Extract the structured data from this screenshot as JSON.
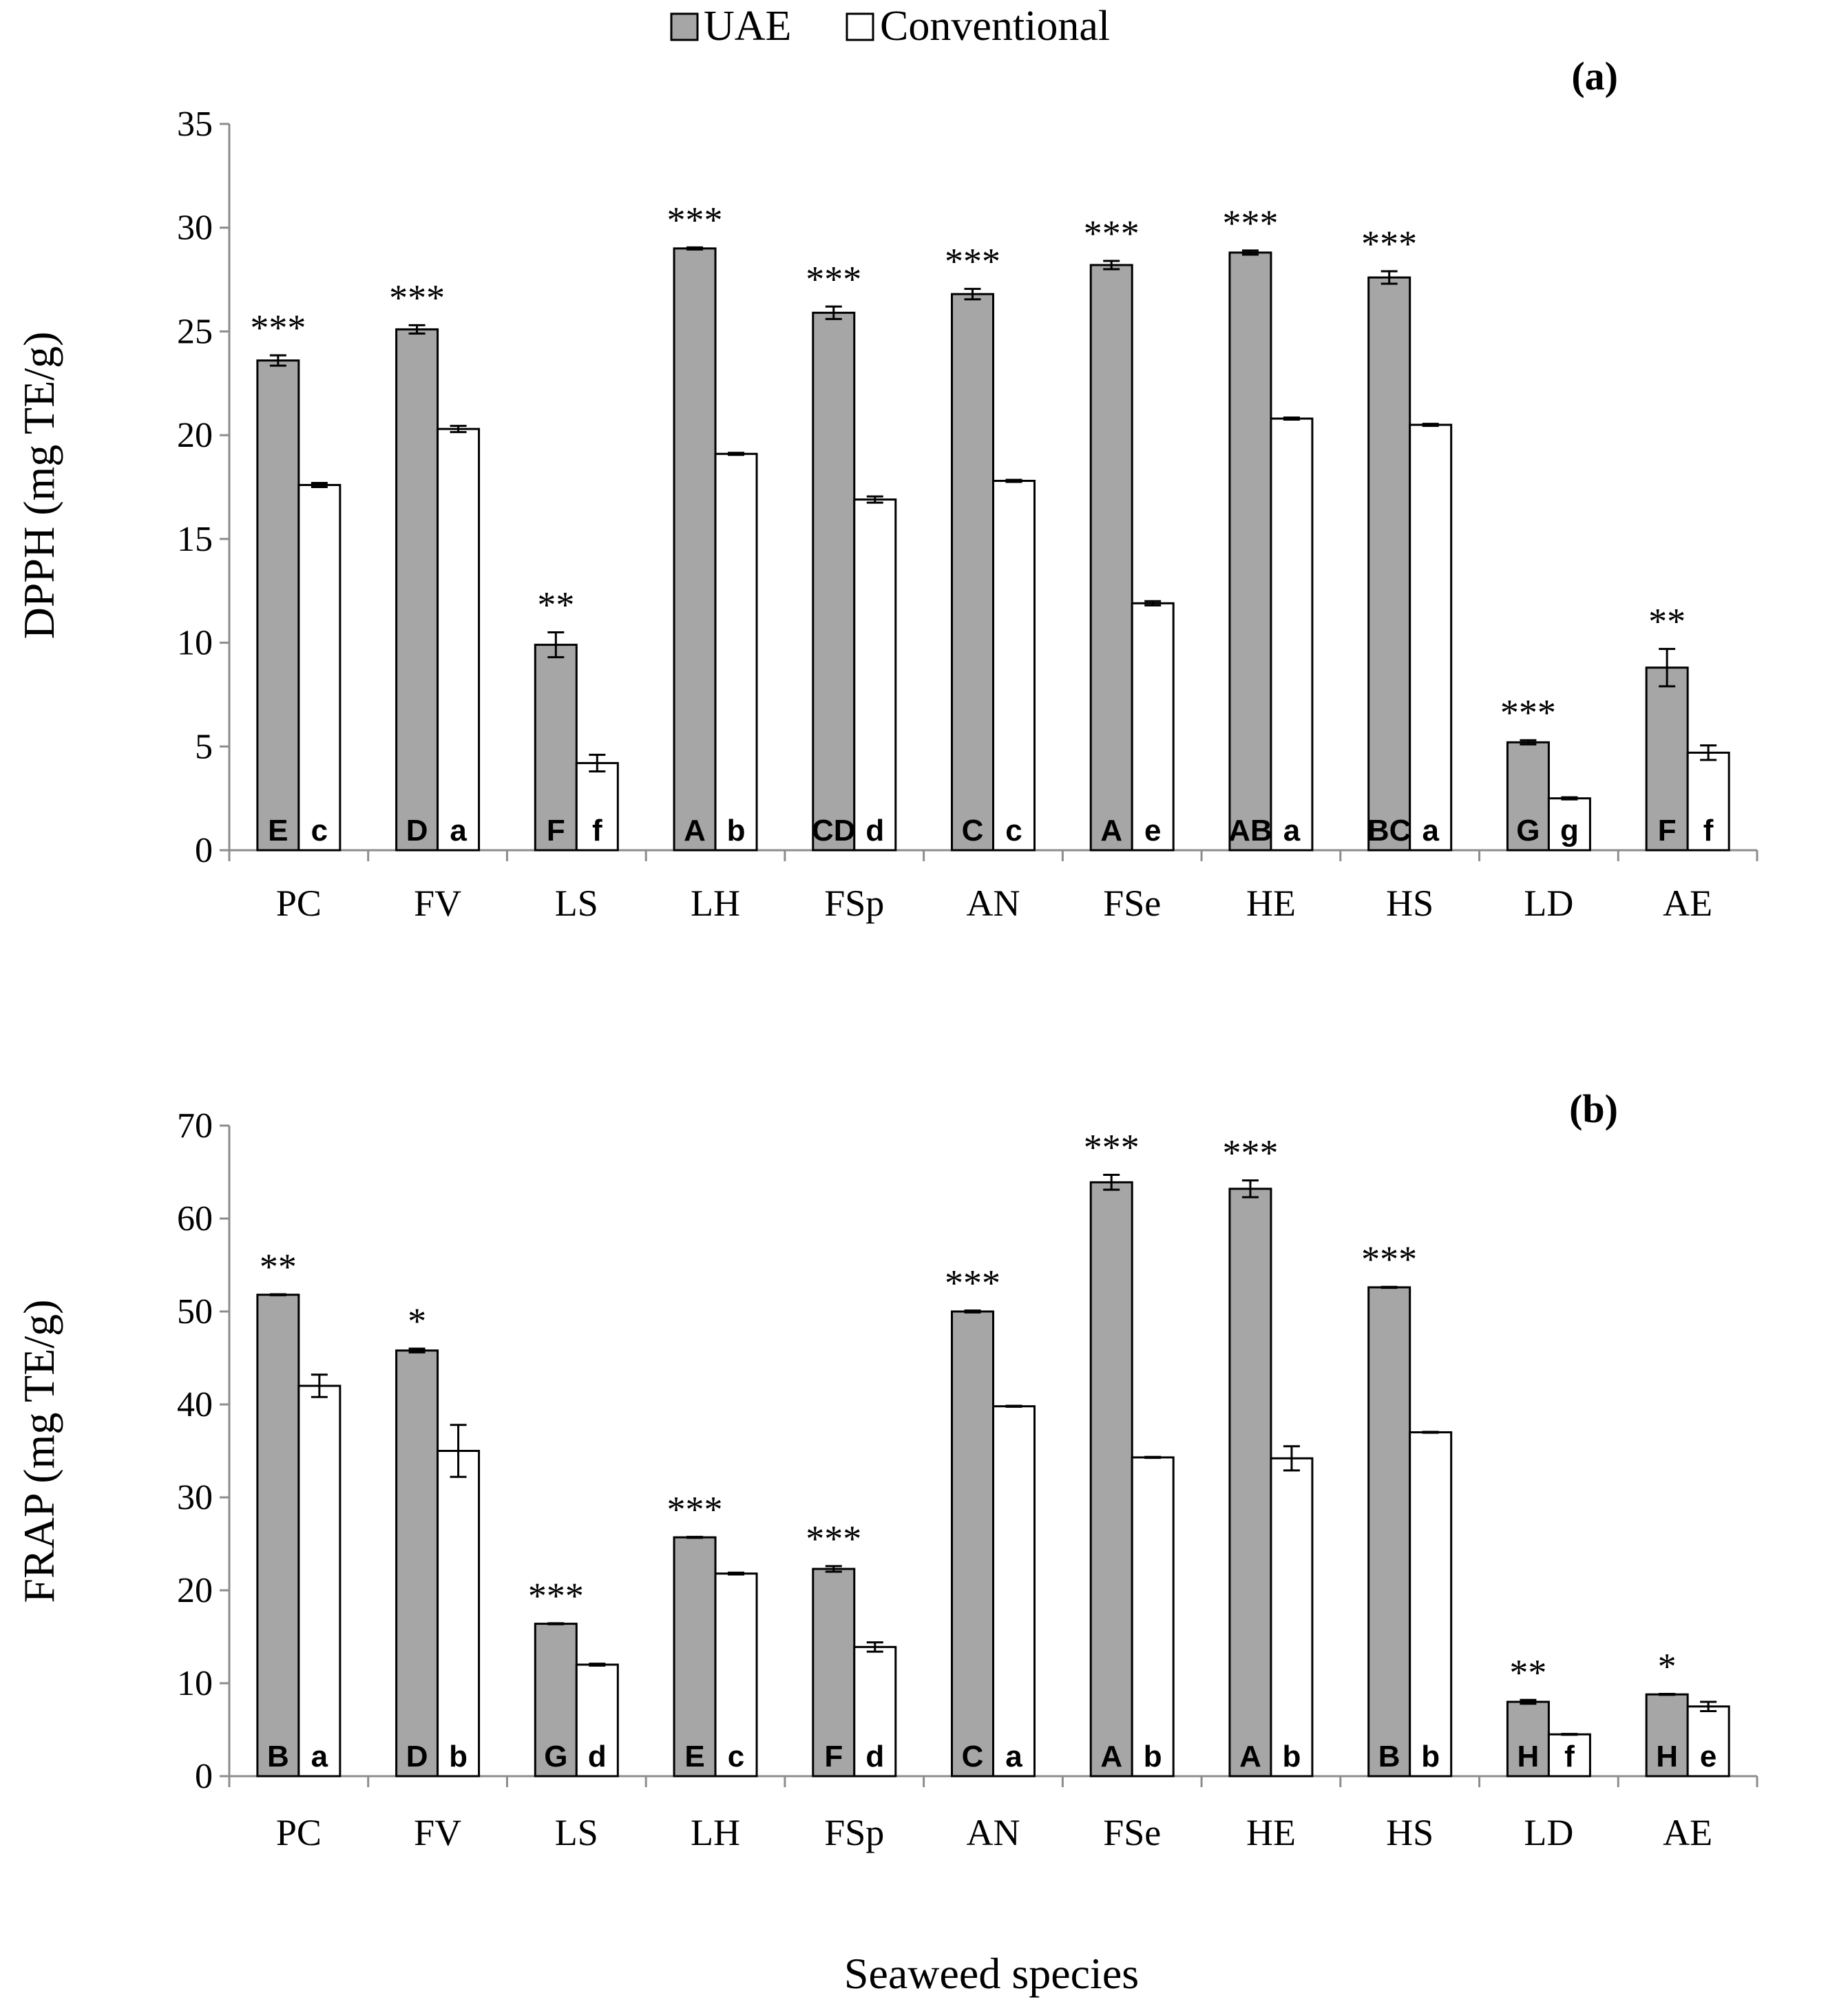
{
  "legend": {
    "uae_label": "UAE",
    "conv_label": "Conventional"
  },
  "colors": {
    "uae": "#a6a6a6",
    "conventional": "#ffffff",
    "axis": "#8c8c8c"
  },
  "xlabel": "Seaweed species",
  "chart_data": [
    {
      "type": "bar",
      "panel": "(a)",
      "ylabel": "DPPH (mg TE/g)",
      "xlabel": "Seaweed species",
      "ylim": [
        0,
        35
      ],
      "yticks": [
        0,
        5,
        10,
        15,
        20,
        25,
        30,
        35
      ],
      "categories": [
        "PC",
        "FV",
        "LS",
        "LH",
        "FSp",
        "AN",
        "FSe",
        "HE",
        "HS",
        "LD",
        "AE"
      ],
      "series": [
        {
          "name": "UAE",
          "values": [
            23.6,
            25.1,
            9.9,
            29.0,
            25.9,
            26.8,
            28.2,
            28.8,
            27.6,
            5.2,
            8.8
          ],
          "errors": [
            0.25,
            0.2,
            0.6,
            0.05,
            0.3,
            0.25,
            0.2,
            0.1,
            0.3,
            0.1,
            0.9
          ],
          "letters": [
            "E",
            "D",
            "F",
            "A",
            "CD",
            "C",
            "A",
            "AB",
            "BC",
            "G",
            "F"
          ],
          "significance": [
            "***",
            "***",
            "**",
            "***",
            "***",
            "***",
            "***",
            "***",
            "***",
            "***",
            "**"
          ]
        },
        {
          "name": "Conventional",
          "values": [
            17.6,
            20.3,
            4.2,
            19.1,
            16.9,
            17.8,
            11.9,
            20.8,
            20.5,
            2.5,
            4.7
          ],
          "errors": [
            0.1,
            0.15,
            0.4,
            0.05,
            0.15,
            0.05,
            0.1,
            0.05,
            0.05,
            0.05,
            0.35
          ],
          "letters": [
            "c",
            "a",
            "f",
            "b",
            "d",
            "c",
            "e",
            "a",
            "a",
            "g",
            "f"
          ]
        }
      ]
    },
    {
      "type": "bar",
      "panel": "(b)",
      "ylabel": "FRAP (mg TE/g)",
      "xlabel": "Seaweed species",
      "ylim": [
        0,
        70
      ],
      "yticks": [
        0,
        10,
        20,
        30,
        40,
        50,
        60,
        70
      ],
      "categories": [
        "PC",
        "FV",
        "LS",
        "LH",
        "FSp",
        "AN",
        "FSe",
        "HE",
        "HS",
        "LD",
        "AE"
      ],
      "series": [
        {
          "name": "UAE",
          "values": [
            51.8,
            45.8,
            16.4,
            25.7,
            22.3,
            50.0,
            63.9,
            63.2,
            52.6,
            8.0,
            8.8
          ],
          "errors": [
            0.05,
            0.2,
            0.05,
            0.05,
            0.3,
            0.1,
            0.8,
            0.9,
            0.05,
            0.2,
            0.05
          ],
          "letters": [
            "B",
            "D",
            "G",
            "E",
            "F",
            "C",
            "A",
            "A",
            "B",
            "H",
            "H"
          ],
          "significance": [
            "**",
            "*",
            "***",
            "***",
            "***",
            "***",
            "***",
            "***",
            "***",
            "**",
            "*"
          ]
        },
        {
          "name": "Conventional",
          "values": [
            42.0,
            35.0,
            12.0,
            21.8,
            13.9,
            39.8,
            34.3,
            34.2,
            37.0,
            4.5,
            7.5
          ],
          "errors": [
            1.2,
            2.8,
            0.1,
            0.1,
            0.5,
            0.05,
            0.05,
            1.3,
            0.05,
            0.05,
            0.5
          ],
          "letters": [
            "a",
            "b",
            "d",
            "c",
            "d",
            "a",
            "b",
            "b",
            "b",
            "f",
            "e"
          ]
        }
      ]
    }
  ]
}
